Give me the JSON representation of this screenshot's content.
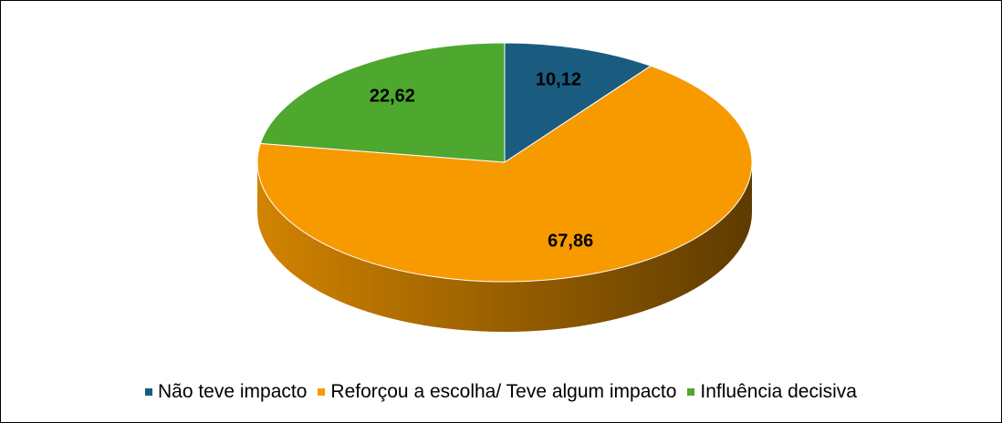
{
  "chart_data": {
    "type": "pie3d",
    "categories": [
      "Não teve impacto",
      "Reforçou a escolha/ Teve algum impacto",
      "Influência decisiva"
    ],
    "values": [
      10.12,
      67.86,
      22.62
    ],
    "value_labels": [
      "10,12",
      "67,86",
      "22,62"
    ],
    "colors": [
      "#1a5c80",
      "#f79a00",
      "#4ea72e"
    ],
    "legend": "bottom"
  }
}
